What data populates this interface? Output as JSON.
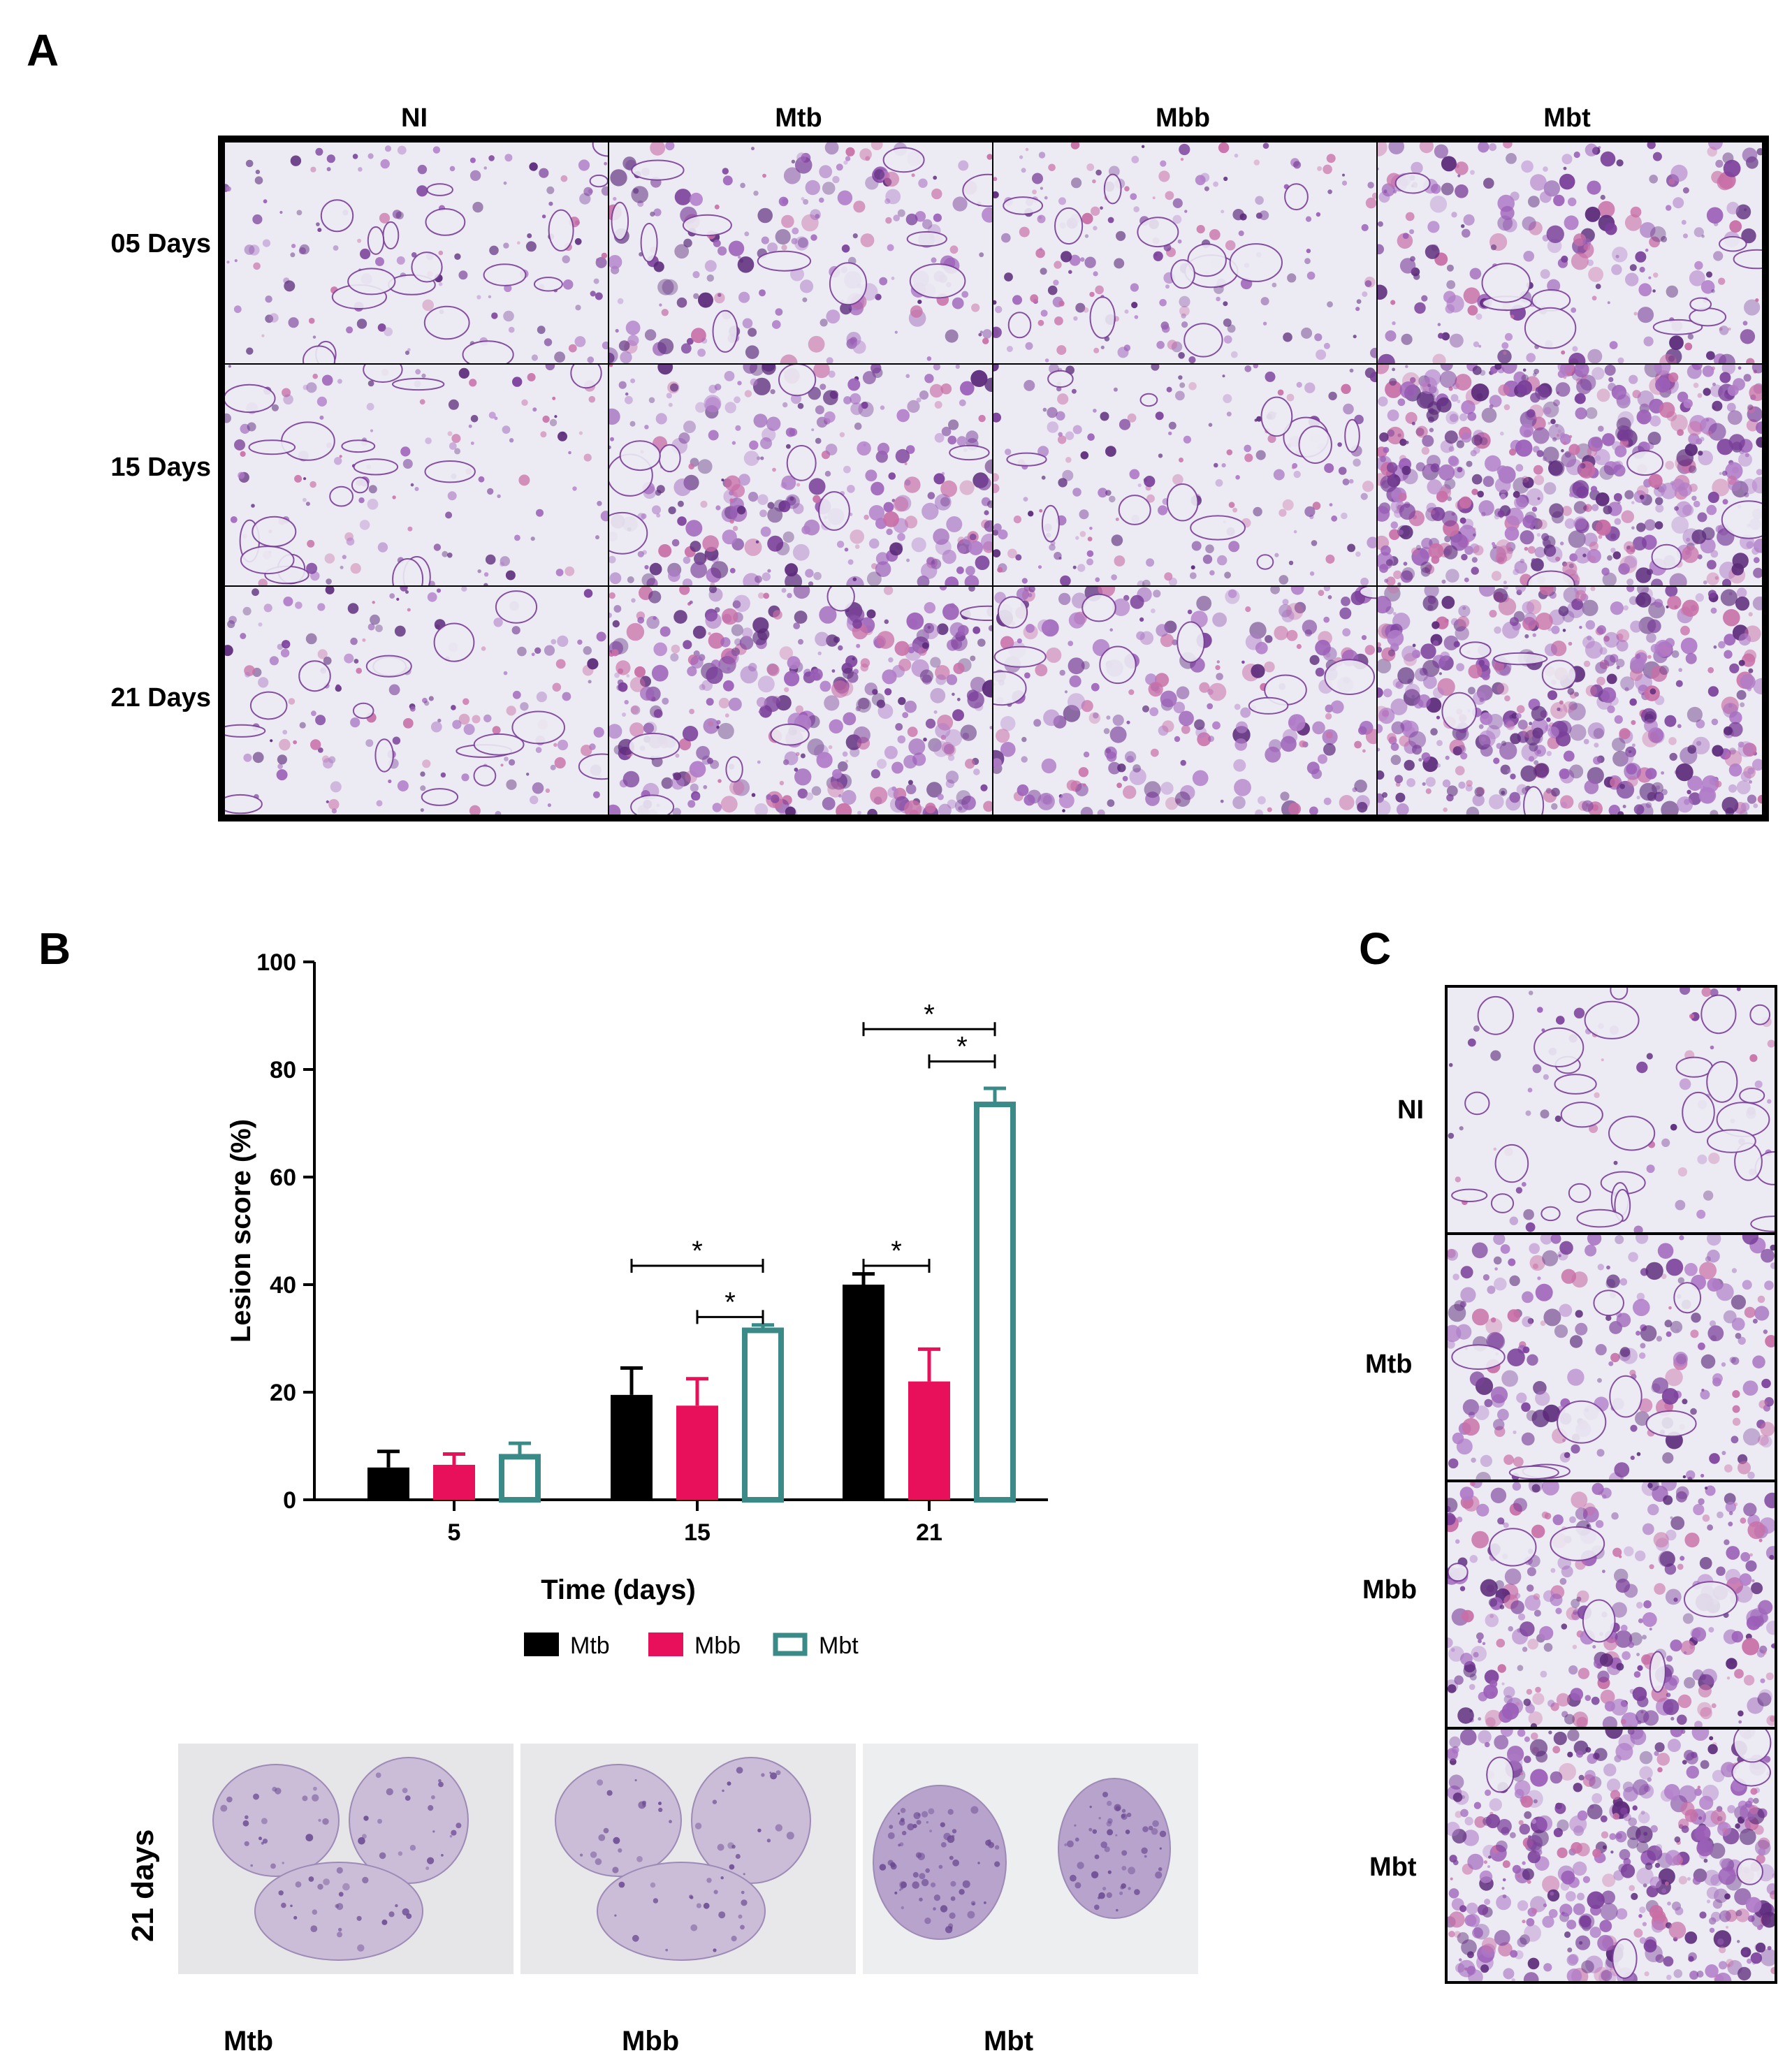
{
  "panel_a": {
    "letter": "A",
    "columns": [
      "NI",
      "Mtb",
      "Mbb",
      "Mbt"
    ],
    "rows": [
      "05 Days",
      "15 Days",
      "21 Days"
    ]
  },
  "panel_b": {
    "letter": "B",
    "gross_label": "21 days",
    "gross_captions": [
      "Mtb",
      "Mbb",
      "Mbt"
    ]
  },
  "panel_c": {
    "letter": "C",
    "rows": [
      "NI",
      "Mtb",
      "Mbb",
      "Mbt"
    ]
  },
  "chart_data": {
    "type": "bar",
    "xlabel": "Time (days)",
    "ylabel": "Lesion score (%)",
    "categories": [
      "5",
      "15",
      "21"
    ],
    "ylim": [
      0,
      100
    ],
    "yticks": [
      0,
      20,
      40,
      60,
      80,
      100
    ],
    "series": [
      {
        "name": "Mtb",
        "values": [
          6,
          19.5,
          40
        ],
        "errors": [
          3,
          5,
          2
        ],
        "color": "#000000",
        "style": "filled"
      },
      {
        "name": "Mbb",
        "values": [
          6.5,
          17.5,
          22
        ],
        "errors": [
          2,
          5,
          6
        ],
        "color": "#e8105a",
        "style": "filled"
      },
      {
        "name": "Mbt",
        "values": [
          8,
          31.5,
          73.5
        ],
        "errors": [
          2.5,
          1,
          3
        ],
        "color": "#3a8a88",
        "style": "outline"
      }
    ],
    "significance": [
      {
        "category": "15",
        "from": "Mtb",
        "to": "Mbt",
        "label": "*"
      },
      {
        "category": "15",
        "from": "Mbb",
        "to": "Mbt",
        "label": "*"
      },
      {
        "category": "21",
        "from": "Mtb",
        "to": "Mbb",
        "label": "*"
      },
      {
        "category": "21",
        "from": "Mtb",
        "to": "Mbt",
        "label": "*"
      },
      {
        "category": "21",
        "from": "Mbb",
        "to": "Mbt",
        "label": "*"
      }
    ],
    "legend": "bottom"
  }
}
